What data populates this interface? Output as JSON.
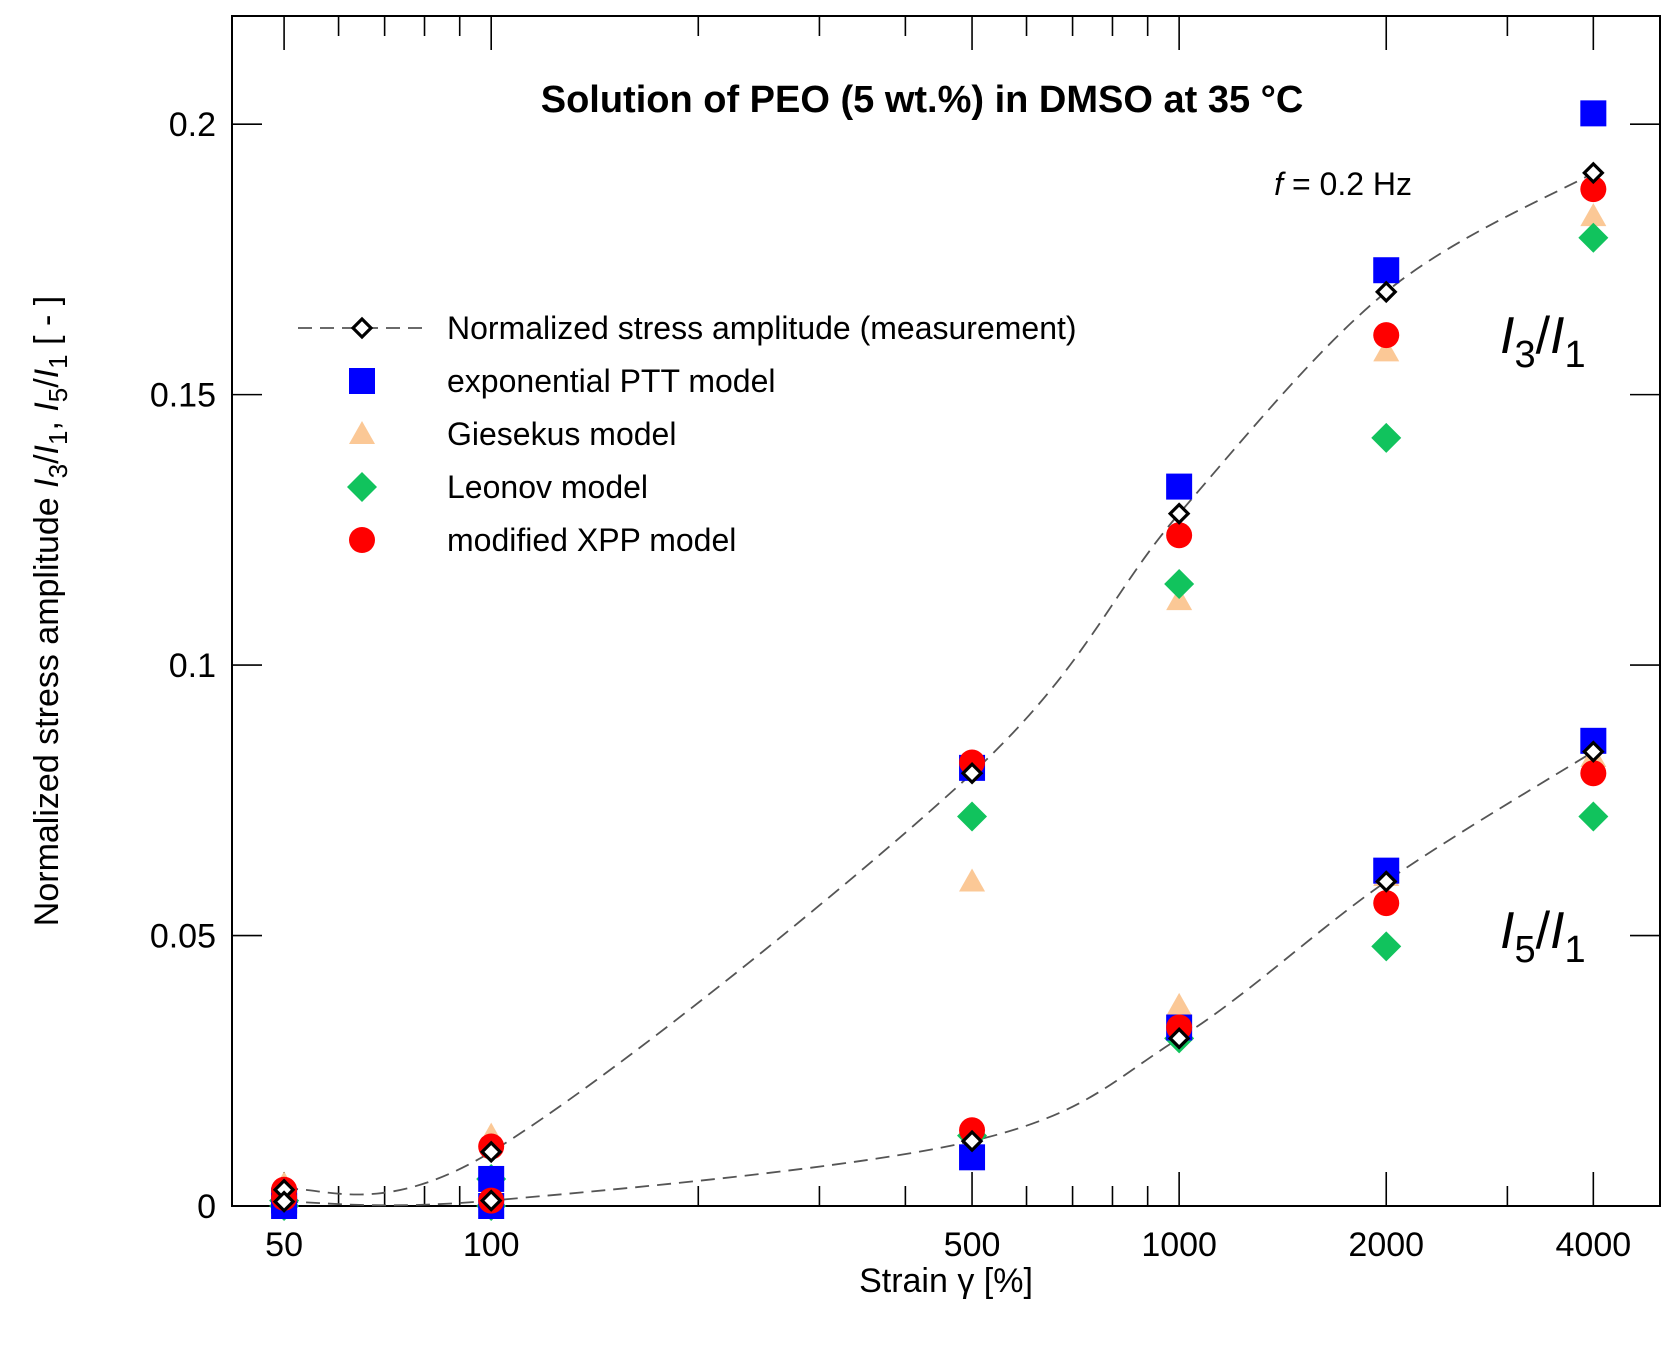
{
  "chart_data": {
    "type": "scatter",
    "title": "Solution of PEO (5 wt.%) in DMSO at 35 °C",
    "annotation": "f = 0.2 Hz",
    "annotation_parts": {
      "var": "f",
      "rest": " = 0.2 Hz"
    },
    "xlabel": "Strain γ [%]",
    "ylabel": "Normalized stress amplitude I3/I1, I5/I1 [ - ]",
    "ylabel_parts": {
      "prefix": "Normalized stress amplitude ",
      "suffix": " [ - ]"
    },
    "xscale": "log",
    "xlim": [
      42,
      5000
    ],
    "ylim": [
      0,
      0.22
    ],
    "x_ticks": [
      50,
      100,
      500,
      1000,
      2000,
      4000
    ],
    "x_tick_labels": [
      "50",
      "100",
      "500",
      "1000",
      "2000",
      "4000"
    ],
    "y_ticks": [
      0,
      0.05,
      0.1,
      0.15,
      0.2
    ],
    "y_tick_labels": [
      "0",
      "0.05",
      "0.1",
      "0.15",
      "0.2"
    ],
    "x": [
      50,
      100,
      500,
      1000,
      2000,
      4000
    ],
    "curve_labels": [
      {
        "text": "I3/I1",
        "num": "3",
        "den": "1",
        "x": 4000,
        "y": 0.161
      },
      {
        "text": "I5/I1",
        "num": "5",
        "den": "1",
        "x": 4000,
        "y": 0.051
      }
    ],
    "series": [
      {
        "name": "Normalized stress amplitude (measurement)",
        "marker": "open-diamond",
        "color": "#000000",
        "line": "dashed",
        "I3_I1": [
          0.003,
          0.01,
          0.08,
          0.128,
          0.169,
          0.191
        ],
        "I5_I1": [
          0.0008,
          0.001,
          0.012,
          0.031,
          0.06,
          0.084
        ]
      },
      {
        "name": "exponential PTT model",
        "marker": "square",
        "color": "#0000ff",
        "I3_I1": [
          0.001,
          0.005,
          0.081,
          0.133,
          0.173,
          0.202
        ],
        "I5_I1": [
          0.0,
          0.0,
          0.009,
          0.033,
          0.062,
          0.086
        ]
      },
      {
        "name": "Giesekus model",
        "marker": "triangle",
        "color": "#fbc896",
        "I3_I1": [
          0.004,
          0.013,
          0.06,
          0.112,
          0.158,
          0.183
        ],
        "I5_I1": [
          0.0,
          0.0,
          0.012,
          0.037,
          0.061,
          0.083
        ]
      },
      {
        "name": "Leonov model",
        "marker": "diamond",
        "color": "#11c35d",
        "I3_I1": [
          0.001,
          0.005,
          0.072,
          0.115,
          0.142,
          0.179
        ],
        "I5_I1": [
          0.0,
          0.0,
          0.013,
          0.031,
          0.048,
          0.072
        ]
      },
      {
        "name": "modified XPP model",
        "marker": "circle",
        "color": "#ff0000",
        "I3_I1": [
          0.003,
          0.011,
          0.082,
          0.124,
          0.161,
          0.188
        ],
        "I5_I1": [
          0.0015,
          0.001,
          0.014,
          0.033,
          0.056,
          0.08
        ]
      }
    ]
  }
}
